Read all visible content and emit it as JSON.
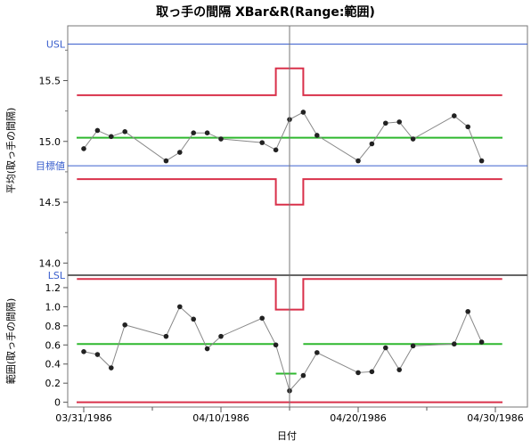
{
  "chart_data": {
    "type": "line",
    "title": "取っ手の間隔  XBar&R(Range:範囲)",
    "xlabel": "日付",
    "x_dates": [
      "03/31",
      "04/01",
      "04/02",
      "04/03",
      "04/06",
      "04/07",
      "04/08",
      "04/09",
      "04/10",
      "04/13",
      "04/14",
      "04/15",
      "04/16",
      "04/17",
      "04/20",
      "04/21",
      "04/22",
      "04/23",
      "04/24",
      "04/27",
      "04/28",
      "04/29",
      "04/30"
    ],
    "x_ticks": [
      {
        "day": 0,
        "label": "03/31/1986"
      },
      {
        "day": 10,
        "label": "04/10/1986"
      },
      {
        "day": 20,
        "label": "04/20/1986"
      },
      {
        "day": 30,
        "label": "04/30/1986"
      }
    ],
    "xlim": [
      0,
      30
    ],
    "phase_change": {
      "start": 14,
      "end": 16
    },
    "xbar": {
      "ylabel": "平均(取っ手の間隔)",
      "ylim": [
        13.9,
        15.95
      ],
      "yticks": [
        14.0,
        14.5,
        15.0,
        15.5
      ],
      "ytick_labels": [
        "14.0",
        "14.5",
        "15.0",
        "15.5"
      ],
      "days": [
        0,
        1,
        2,
        3,
        6,
        7,
        8,
        9,
        10,
        13,
        14,
        15,
        16,
        17,
        20,
        21,
        22,
        23,
        24,
        27,
        28,
        29
      ],
      "values": [
        14.94,
        15.09,
        15.04,
        15.08,
        14.84,
        14.91,
        15.07,
        15.07,
        15.02,
        14.99,
        14.93,
        15.18,
        15.24,
        15.05,
        14.84,
        14.98,
        15.15,
        15.16,
        15.02,
        15.21,
        15.12,
        14.84
      ],
      "center": 15.03,
      "ucl": [
        {
          "x0": -0.5,
          "x1": 14,
          "y": 15.38
        },
        {
          "x0": 14,
          "x1": 16,
          "y": 15.6
        },
        {
          "x0": 16,
          "x1": 30.5,
          "y": 15.38
        }
      ],
      "lcl": [
        {
          "x0": -0.5,
          "x1": 14,
          "y": 14.69
        },
        {
          "x0": 14,
          "x1": 16,
          "y": 14.48
        },
        {
          "x0": 16,
          "x1": 30.5,
          "y": 14.69
        }
      ],
      "usl": {
        "label": "USL",
        "value": 15.8
      },
      "target": {
        "label": "目標値",
        "value": 14.8
      },
      "lsl": {
        "label": "LSL",
        "value": 13.9
      }
    },
    "range": {
      "ylabel": "範囲(取っ手の間隔)",
      "ylim": [
        -0.05,
        1.33
      ],
      "yticks": [
        0,
        0.2,
        0.4,
        0.6,
        0.8,
        1.0,
        1.2
      ],
      "ytick_labels": [
        "0",
        "0.2",
        "0.4",
        "0.6",
        "0.8",
        "1.0",
        "1.2"
      ],
      "days": [
        0,
        1,
        2,
        3,
        6,
        7,
        8,
        9,
        10,
        13,
        14,
        15,
        16,
        17,
        20,
        21,
        22,
        23,
        24,
        27,
        28,
        29
      ],
      "values": [
        0.53,
        0.5,
        0.36,
        0.81,
        0.69,
        1.0,
        0.87,
        0.56,
        0.69,
        0.88,
        0.6,
        0.12,
        0.28,
        0.52,
        0.31,
        0.32,
        0.57,
        0.34,
        0.59,
        0.61,
        0.95,
        0.63
      ],
      "center": [
        {
          "x0": -0.5,
          "x1": 14,
          "y": 0.61
        },
        {
          "x0": 14,
          "x1": 15.5,
          "y": 0.3
        },
        {
          "x0": 16,
          "x1": 30.5,
          "y": 0.61
        }
      ],
      "ucl": [
        {
          "x0": -0.5,
          "x1": 14,
          "y": 1.29
        },
        {
          "x0": 14,
          "x1": 16,
          "y": 0.97
        },
        {
          "x0": 16,
          "x1": 30.5,
          "y": 1.29
        }
      ],
      "lcl": 0
    },
    "colors": {
      "ucl_lcl": "#d9304a",
      "center": "#2eb82e",
      "spec": "#3a5fcd",
      "points": "#222222",
      "series": "#888888",
      "phase": "#777777"
    }
  }
}
